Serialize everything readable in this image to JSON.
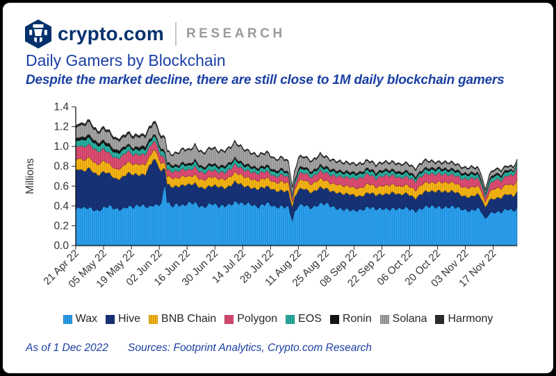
{
  "frame": {
    "background": "#000000",
    "card_background": "#ffffff"
  },
  "header": {
    "logo_icon": "crypto-com-shield-logo",
    "brand": "crypto.com",
    "brand_color": "#03316C",
    "research_label": "RESEARCH",
    "research_color": "#9B9B9D"
  },
  "title": {
    "text": "Daily Gamers by Blockchain",
    "color": "#1A3FA3"
  },
  "subtitle": {
    "text": "Despite the market decline, there are still close to 1M daily blockchain gamers"
  },
  "chart_data": {
    "type": "area",
    "stacked": true,
    "title": "Daily Gamers by Blockchain",
    "xlabel": "",
    "ylabel": "Millions",
    "ylim": [
      0,
      1.4
    ],
    "grid": false,
    "legend_position": "bottom",
    "y_ticks": [
      "0.0",
      "0.2",
      "0.4",
      "0.6",
      "0.8",
      "1.0",
      "1.2",
      "1.4"
    ],
    "x_tick_labels": [
      "21 Apr 22",
      "05 May 22",
      "19 May 22",
      "02 Jun 22",
      "16 Jun 22",
      "30 Jun 22",
      "14 Jul 22",
      "28 Jul 22",
      "11 Aug 22",
      "25 Aug 22",
      "08 Sep 22",
      "22 Sep 22",
      "06 Oct 22",
      "20 Oct 22",
      "03 Nov 22",
      "17 Nov 22"
    ],
    "x_tick_days": [
      0,
      14,
      28,
      42,
      56,
      70,
      84,
      98,
      112,
      126,
      140,
      154,
      168,
      182,
      196,
      210
    ],
    "x_max_day": 222,
    "x_days": [
      0,
      2,
      4,
      6,
      8,
      11,
      14,
      17,
      20,
      23,
      26,
      29,
      32,
      35,
      37,
      39,
      41,
      43,
      45,
      46,
      48,
      51,
      54,
      57,
      60,
      64,
      68,
      72,
      76,
      80,
      84,
      88,
      92,
      96,
      100,
      104,
      107,
      109,
      110,
      112,
      115,
      119,
      123,
      127,
      131,
      135,
      139,
      143,
      147,
      151,
      155,
      159,
      163,
      167,
      171,
      175,
      179,
      183,
      187,
      191,
      195,
      199,
      202,
      204,
      206,
      208,
      211,
      214,
      217,
      220,
      222
    ],
    "series": [
      {
        "name": "Wax",
        "color": "#2AA3F5",
        "values": [
          0.36,
          0.38,
          0.37,
          0.38,
          0.38,
          0.36,
          0.38,
          0.39,
          0.37,
          0.38,
          0.4,
          0.38,
          0.4,
          0.41,
          0.4,
          0.42,
          0.4,
          0.42,
          0.62,
          0.44,
          0.41,
          0.43,
          0.4,
          0.42,
          0.43,
          0.4,
          0.42,
          0.39,
          0.42,
          0.44,
          0.41,
          0.43,
          0.4,
          0.42,
          0.39,
          0.41,
          0.39,
          0.25,
          0.32,
          0.4,
          0.42,
          0.39,
          0.41,
          0.42,
          0.39,
          0.36,
          0.35,
          0.37,
          0.39,
          0.36,
          0.38,
          0.38,
          0.36,
          0.38,
          0.36,
          0.38,
          0.39,
          0.4,
          0.39,
          0.38,
          0.37,
          0.36,
          0.37,
          0.34,
          0.26,
          0.33,
          0.35,
          0.34,
          0.36,
          0.35,
          0.38
        ]
      },
      {
        "name": "Hive",
        "color": "#16337C",
        "values": [
          0.38,
          0.38,
          0.36,
          0.41,
          0.4,
          0.36,
          0.35,
          0.32,
          0.31,
          0.32,
          0.33,
          0.32,
          0.31,
          0.33,
          0.42,
          0.45,
          0.42,
          0.3,
          0.16,
          0.18,
          0.2,
          0.18,
          0.2,
          0.18,
          0.2,
          0.19,
          0.17,
          0.2,
          0.18,
          0.2,
          0.18,
          0.17,
          0.18,
          0.16,
          0.17,
          0.16,
          0.15,
          0.13,
          0.15,
          0.16,
          0.17,
          0.15,
          0.16,
          0.15,
          0.16,
          0.15,
          0.16,
          0.14,
          0.14,
          0.14,
          0.15,
          0.16,
          0.14,
          0.15,
          0.13,
          0.15,
          0.15,
          0.17,
          0.15,
          0.15,
          0.14,
          0.14,
          0.14,
          0.13,
          0.12,
          0.14,
          0.14,
          0.14,
          0.15,
          0.15,
          0.17
        ]
      },
      {
        "name": "BNB Chain",
        "color": "#FDB913",
        "values": [
          0.1,
          0.11,
          0.11,
          0.11,
          0.11,
          0.1,
          0.11,
          0.1,
          0.1,
          0.1,
          0.11,
          0.1,
          0.11,
          0.1,
          0.09,
          0.09,
          0.09,
          0.08,
          0.05,
          0.08,
          0.09,
          0.08,
          0.09,
          0.08,
          0.09,
          0.08,
          0.09,
          0.08,
          0.09,
          0.09,
          0.1,
          0.09,
          0.08,
          0.09,
          0.08,
          0.09,
          0.08,
          0.05,
          0.07,
          0.09,
          0.09,
          0.08,
          0.09,
          0.08,
          0.08,
          0.08,
          0.08,
          0.08,
          0.09,
          0.08,
          0.09,
          0.08,
          0.08,
          0.09,
          0.08,
          0.09,
          0.09,
          0.09,
          0.09,
          0.09,
          0.09,
          0.09,
          0.08,
          0.08,
          0.05,
          0.08,
          0.1,
          0.09,
          0.1,
          0.11,
          0.12
        ]
      },
      {
        "name": "Polygon",
        "color": "#E34D74",
        "values": [
          0.13,
          0.13,
          0.14,
          0.13,
          0.13,
          0.13,
          0.12,
          0.11,
          0.11,
          0.11,
          0.11,
          0.1,
          0.1,
          0.1,
          0.09,
          0.09,
          0.09,
          0.08,
          0.05,
          0.07,
          0.06,
          0.07,
          0.07,
          0.07,
          0.08,
          0.07,
          0.07,
          0.07,
          0.07,
          0.08,
          0.07,
          0.07,
          0.07,
          0.07,
          0.06,
          0.07,
          0.06,
          0.04,
          0.05,
          0.07,
          0.07,
          0.07,
          0.08,
          0.08,
          0.08,
          0.09,
          0.09,
          0.1,
          0.1,
          0.09,
          0.1,
          0.09,
          0.09,
          0.08,
          0.09,
          0.09,
          0.09,
          0.08,
          0.08,
          0.08,
          0.08,
          0.09,
          0.08,
          0.07,
          0.05,
          0.07,
          0.09,
          0.08,
          0.09,
          0.1,
          0.12
        ]
      },
      {
        "name": "EOS",
        "color": "#29B3A4",
        "values": [
          0.06,
          0.06,
          0.07,
          0.07,
          0.06,
          0.06,
          0.06,
          0.06,
          0.05,
          0.05,
          0.05,
          0.05,
          0.05,
          0.05,
          0.05,
          0.05,
          0.05,
          0.05,
          0.05,
          0.05,
          0.05,
          0.04,
          0.05,
          0.04,
          0.05,
          0.04,
          0.05,
          0.04,
          0.05,
          0.05,
          0.04,
          0.04,
          0.04,
          0.04,
          0.04,
          0.04,
          0.03,
          0.03,
          0.03,
          0.04,
          0.04,
          0.04,
          0.04,
          0.04,
          0.04,
          0.04,
          0.04,
          0.04,
          0.04,
          0.04,
          0.04,
          0.04,
          0.04,
          0.04,
          0.03,
          0.04,
          0.04,
          0.04,
          0.04,
          0.04,
          0.04,
          0.04,
          0.04,
          0.03,
          0.03,
          0.04,
          0.04,
          0.04,
          0.04,
          0.04,
          0.04
        ]
      },
      {
        "name": "Ronin",
        "color": "#161616",
        "values": [
          0.03,
          0.03,
          0.03,
          0.03,
          0.03,
          0.03,
          0.03,
          0.03,
          0.03,
          0.03,
          0.02,
          0.02,
          0.03,
          0.03,
          0.03,
          0.02,
          0.02,
          0.02,
          0.02,
          0.02,
          0.02,
          0.02,
          0.02,
          0.02,
          0.02,
          0.02,
          0.02,
          0.02,
          0.02,
          0.02,
          0.02,
          0.02,
          0.02,
          0.02,
          0.02,
          0.02,
          0.02,
          0.01,
          0.02,
          0.02,
          0.02,
          0.02,
          0.02,
          0.02,
          0.02,
          0.02,
          0.02,
          0.02,
          0.02,
          0.02,
          0.02,
          0.02,
          0.02,
          0.02,
          0.02,
          0.02,
          0.02,
          0.02,
          0.02,
          0.02,
          0.02,
          0.02,
          0.02,
          0.02,
          0.01,
          0.02,
          0.02,
          0.02,
          0.02,
          0.01,
          0.01
        ]
      },
      {
        "name": "Solana",
        "color": "#A7A7A7",
        "values": [
          0.1,
          0.12,
          0.11,
          0.13,
          0.12,
          0.1,
          0.11,
          0.11,
          0.1,
          0.1,
          0.1,
          0.1,
          0.1,
          0.1,
          0.11,
          0.11,
          0.11,
          0.1,
          0.14,
          0.11,
          0.1,
          0.12,
          0.13,
          0.13,
          0.14,
          0.14,
          0.15,
          0.14,
          0.15,
          0.15,
          0.14,
          0.13,
          0.12,
          0.12,
          0.11,
          0.11,
          0.1,
          0.06,
          0.08,
          0.1,
          0.1,
          0.1,
          0.1,
          0.09,
          0.09,
          0.08,
          0.08,
          0.08,
          0.07,
          0.07,
          0.07,
          0.07,
          0.07,
          0.07,
          0.07,
          0.07,
          0.06,
          0.05,
          0.06,
          0.05,
          0.05,
          0.05,
          0.04,
          0.04,
          0.03,
          0.04,
          0.04,
          0.04,
          0.03,
          0.03,
          0.02
        ]
      },
      {
        "name": "Harmony",
        "color": "#2F2F2F",
        "values": [
          0.02,
          0.02,
          0.02,
          0.02,
          0.02,
          0.02,
          0.02,
          0.02,
          0.02,
          0.02,
          0.02,
          0.02,
          0.02,
          0.02,
          0.02,
          0.02,
          0.02,
          0.02,
          0.01,
          0.01,
          0.01,
          0.01,
          0.01,
          0.01,
          0.01,
          0.01,
          0.01,
          0.01,
          0.01,
          0.01,
          0.01,
          0.01,
          0.01,
          0.01,
          0.01,
          0.01,
          0.01,
          0.01,
          0.01,
          0.01,
          0.01,
          0.01,
          0.01,
          0.01,
          0.01,
          0.01,
          0.01,
          0.01,
          0.01,
          0.01,
          0.01,
          0.01,
          0.01,
          0.01,
          0.01,
          0.01,
          0.01,
          0.01,
          0.01,
          0.01,
          0.01,
          0.01,
          0.01,
          0.01,
          0.01,
          0.01,
          0.01,
          0.01,
          0.01,
          0.01,
          0.01
        ]
      }
    ]
  },
  "footer": {
    "as_of": "As of 1 Dec 2022",
    "sources": "Sources: Footprint Analytics, Crypto.com Research",
    "color": "#1A3FA3"
  }
}
